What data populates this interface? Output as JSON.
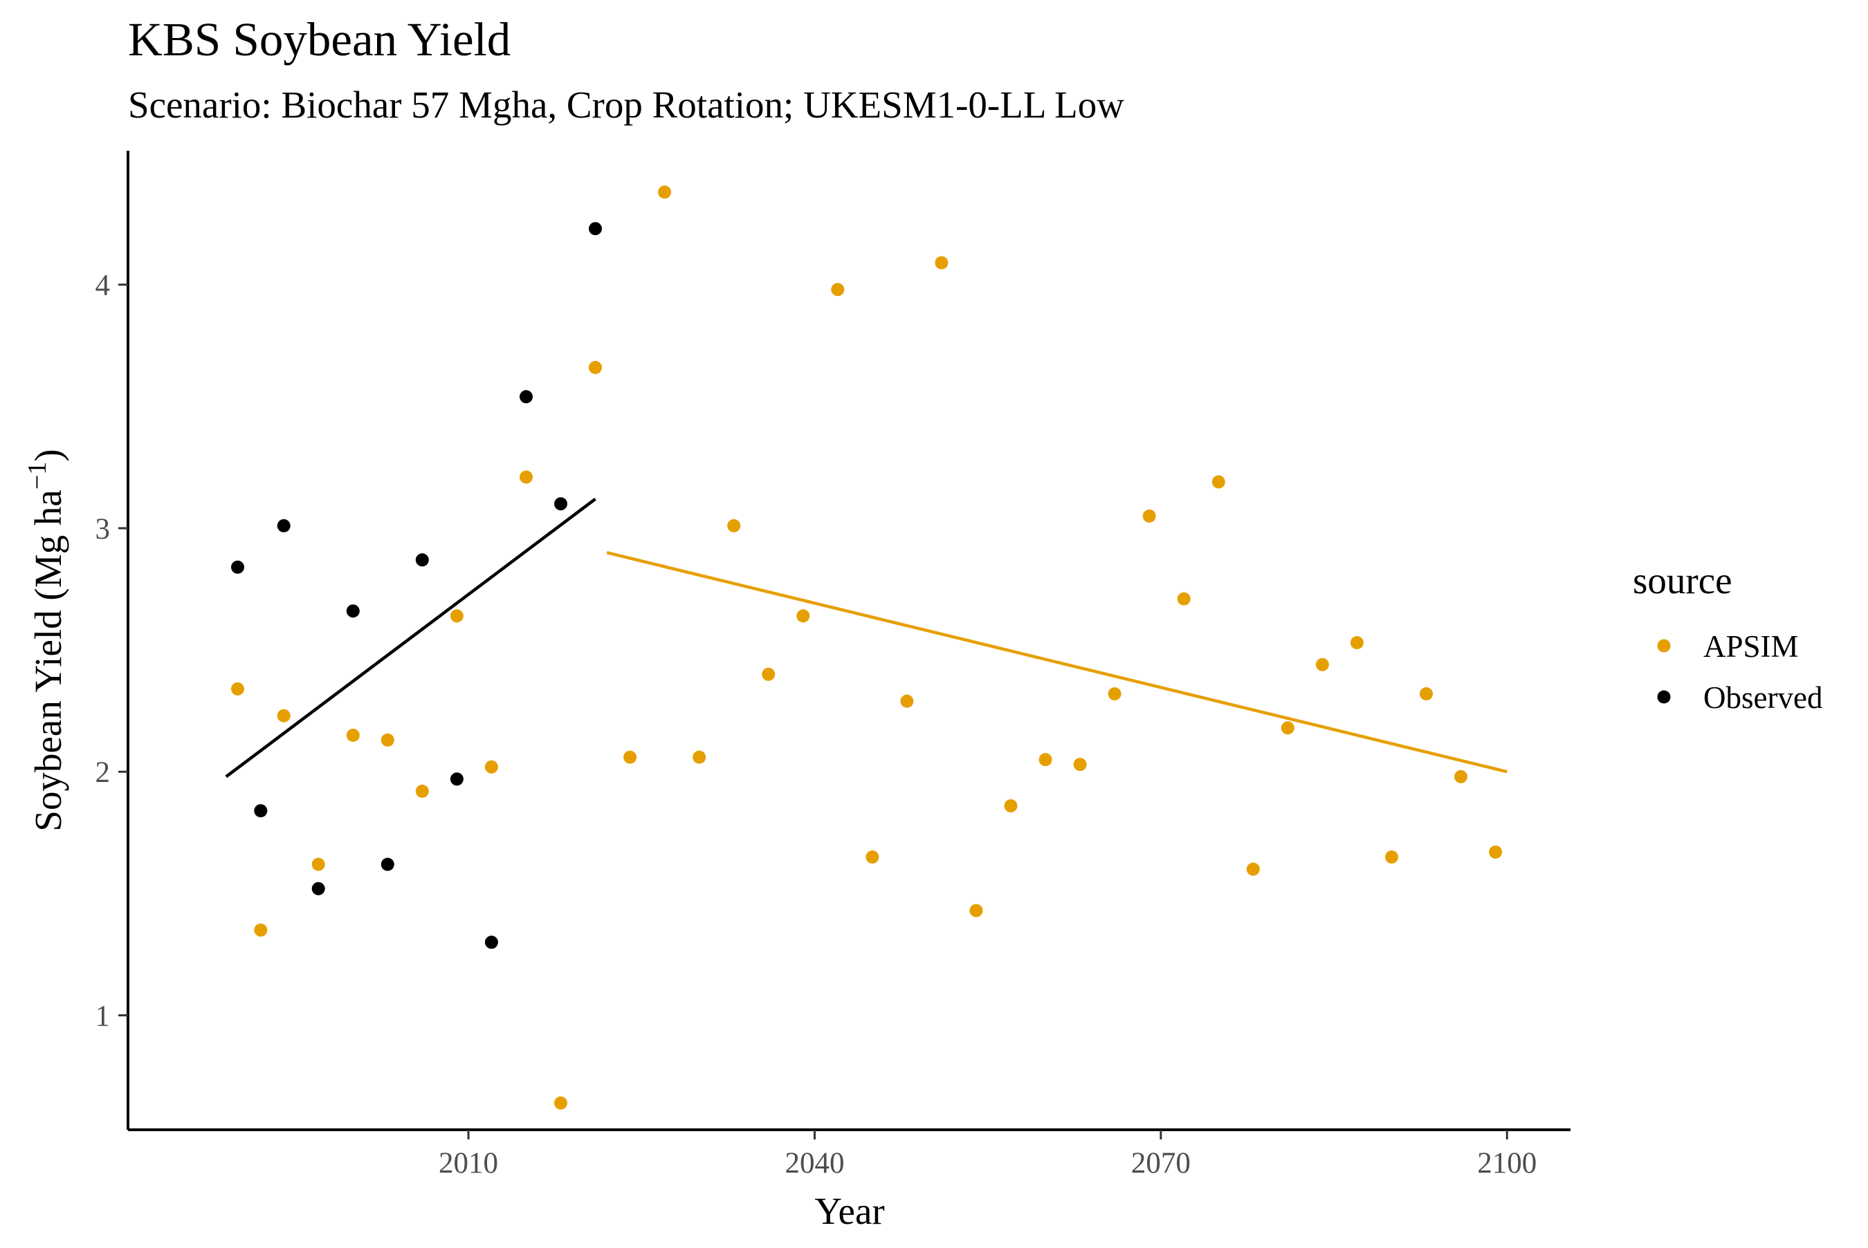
{
  "chart_data": {
    "type": "scatter",
    "title": "KBS Soybean Yield",
    "subtitle": "Scenario: Biochar 57 Mgha, Crop Rotation; UKESM1-0-LL Low",
    "xlabel": "Year",
    "ylabel_main": "Soybean Yield (Mg ha",
    "ylabel_sup": "−1",
    "ylabel_close": ")",
    "xlim": [
      1980.5,
      2105.5
    ],
    "ylim": [
      0.53,
      4.55
    ],
    "x_ticks": [
      2010,
      2040,
      2070,
      2100
    ],
    "x_tick_labels": [
      "2010",
      "2040",
      "2070",
      "2100"
    ],
    "y_ticks": [
      1,
      2,
      3,
      4
    ],
    "y_tick_labels": [
      "1",
      "2",
      "3",
      "4"
    ],
    "grid": false,
    "legend": {
      "title": "source",
      "placement": "right"
    },
    "series": [
      {
        "name": "APSIM",
        "color": "#E69F00",
        "points": [
          {
            "x": 1990,
            "y": 2.34
          },
          {
            "x": 1992,
            "y": 1.35
          },
          {
            "x": 1994,
            "y": 2.23
          },
          {
            "x": 1997,
            "y": 1.62
          },
          {
            "x": 2000,
            "y": 2.15
          },
          {
            "x": 2003,
            "y": 2.13
          },
          {
            "x": 2006,
            "y": 1.92
          },
          {
            "x": 2009,
            "y": 2.64
          },
          {
            "x": 2012,
            "y": 2.02
          },
          {
            "x": 2015,
            "y": 3.21
          },
          {
            "x": 2018,
            "y": 0.64
          },
          {
            "x": 2021,
            "y": 3.66
          },
          {
            "x": 2024,
            "y": 2.06
          },
          {
            "x": 2027,
            "y": 4.38
          },
          {
            "x": 2030,
            "y": 2.06
          },
          {
            "x": 2033,
            "y": 3.01
          },
          {
            "x": 2036,
            "y": 2.4
          },
          {
            "x": 2039,
            "y": 2.64
          },
          {
            "x": 2042,
            "y": 3.98
          },
          {
            "x": 2045,
            "y": 1.65
          },
          {
            "x": 2048,
            "y": 2.29
          },
          {
            "x": 2051,
            "y": 4.09
          },
          {
            "x": 2054,
            "y": 1.43
          },
          {
            "x": 2057,
            "y": 1.86
          },
          {
            "x": 2060,
            "y": 2.05
          },
          {
            "x": 2063,
            "y": 2.03
          },
          {
            "x": 2066,
            "y": 2.32
          },
          {
            "x": 2069,
            "y": 3.05
          },
          {
            "x": 2072,
            "y": 2.71
          },
          {
            "x": 2075,
            "y": 3.19
          },
          {
            "x": 2078,
            "y": 1.6
          },
          {
            "x": 2081,
            "y": 2.18
          },
          {
            "x": 2084,
            "y": 2.44
          },
          {
            "x": 2087,
            "y": 2.53
          },
          {
            "x": 2090,
            "y": 1.65
          },
          {
            "x": 2093,
            "y": 2.32
          },
          {
            "x": 2096,
            "y": 1.98
          },
          {
            "x": 2099,
            "y": 1.67
          }
        ],
        "trend": {
          "x": [
            2022,
            2100
          ],
          "y": [
            2.9,
            2.0
          ]
        }
      },
      {
        "name": "Observed",
        "color": "#000000",
        "points": [
          {
            "x": 1990,
            "y": 2.84
          },
          {
            "x": 1992,
            "y": 1.84
          },
          {
            "x": 1994,
            "y": 3.01
          },
          {
            "x": 1997,
            "y": 1.52
          },
          {
            "x": 2000,
            "y": 2.66
          },
          {
            "x": 2003,
            "y": 1.62
          },
          {
            "x": 2006,
            "y": 2.87
          },
          {
            "x": 2009,
            "y": 1.97
          },
          {
            "x": 2012,
            "y": 1.3
          },
          {
            "x": 2015,
            "y": 3.54
          },
          {
            "x": 2018,
            "y": 3.1
          },
          {
            "x": 2021,
            "y": 4.23
          }
        ],
        "trend": {
          "x": [
            1989,
            2021
          ],
          "y": [
            1.98,
            3.12
          ]
        }
      }
    ]
  }
}
